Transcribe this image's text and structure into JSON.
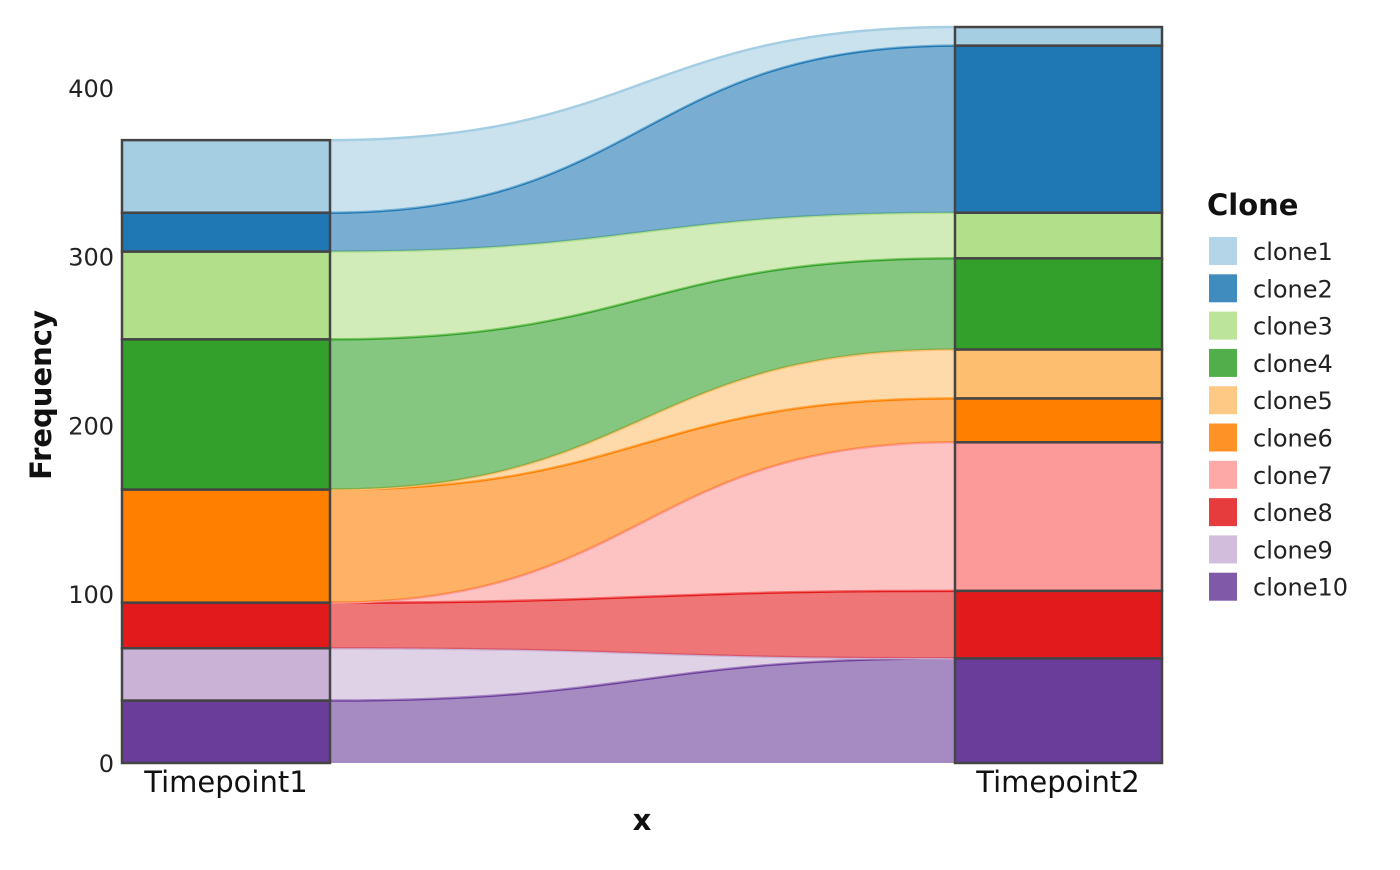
{
  "chart_data": {
    "type": "alluvial",
    "title": "",
    "xlabel": "x",
    "ylabel": "Frequency",
    "ylim": [
      0,
      436
    ],
    "yticks": [
      0,
      100,
      200,
      300,
      400
    ],
    "categories": [
      "Timepoint1",
      "Timepoint2"
    ],
    "legend": {
      "title": "Clone",
      "position": "right"
    },
    "series": [
      {
        "name": "clone1",
        "color": "#A6CEE3",
        "values": [
          43,
          11
        ]
      },
      {
        "name": "clone2",
        "color": "#1F78B4",
        "values": [
          23,
          99
        ]
      },
      {
        "name": "clone3",
        "color": "#B2DF8A",
        "values": [
          52,
          27
        ]
      },
      {
        "name": "clone4",
        "color": "#33A02C",
        "values": [
          89,
          54
        ]
      },
      {
        "name": "clone5",
        "color": "#FDBF6F",
        "values": [
          0,
          29
        ]
      },
      {
        "name": "clone6",
        "color": "#FF7F00",
        "values": [
          67,
          26
        ]
      },
      {
        "name": "clone7",
        "color": "#FB9A99",
        "values": [
          0,
          88
        ]
      },
      {
        "name": "clone8",
        "color": "#E31A1C",
        "values": [
          27,
          40
        ]
      },
      {
        "name": "clone9",
        "color": "#CAB2D6",
        "values": [
          31,
          0
        ]
      },
      {
        "name": "clone10",
        "color": "#6A3D9A",
        "values": [
          37,
          62
        ]
      }
    ]
  }
}
